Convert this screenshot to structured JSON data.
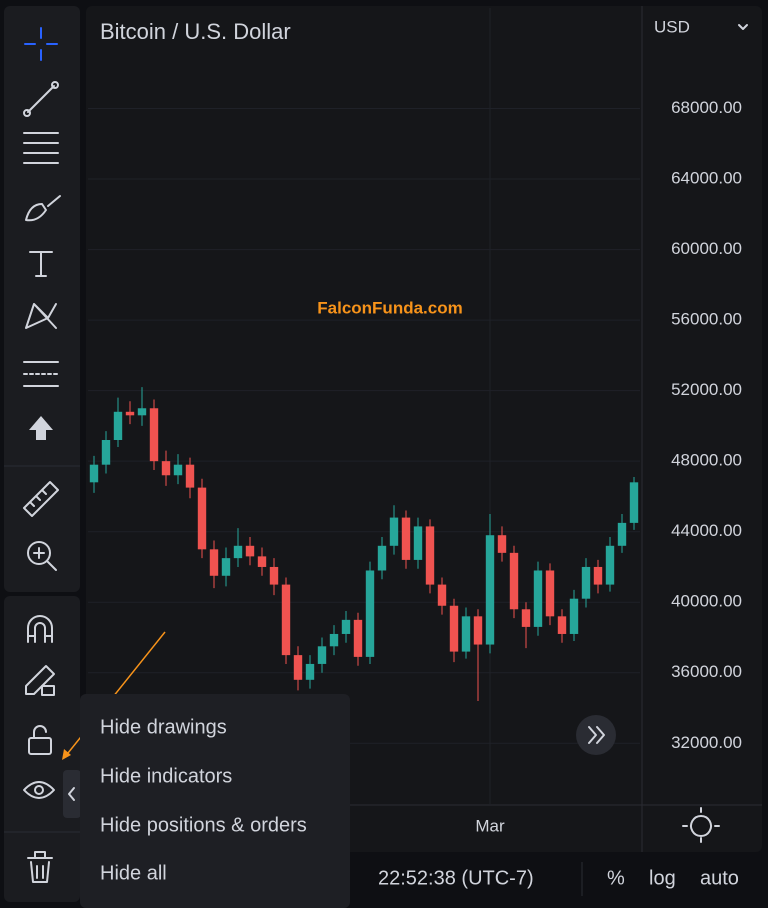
{
  "chart": {
    "title": "Bitcoin / U.S. Dollar",
    "currency": "USD",
    "watermark": "FalconFunda.com",
    "up_color": "#26a69a",
    "down_color": "#ef5350",
    "ylim": [
      28500,
      73700
    ],
    "yticks": [
      {
        "value": 68000,
        "label": "68000.00"
      },
      {
        "value": 64000,
        "label": "64000.00"
      },
      {
        "value": 60000,
        "label": "60000.00"
      },
      {
        "value": 56000,
        "label": "56000.00"
      },
      {
        "value": 52000,
        "label": "52000.00"
      },
      {
        "value": 48000,
        "label": "48000.00"
      },
      {
        "value": 44000,
        "label": "44000.00"
      },
      {
        "value": 40000,
        "label": "40000.00"
      },
      {
        "value": 36000,
        "label": "36000.00"
      },
      {
        "value": 32000,
        "label": "32000.00"
      }
    ],
    "categories": [
      null,
      null,
      null,
      null,
      null,
      null,
      null,
      null,
      null,
      null,
      null,
      null,
      null,
      null,
      null,
      null,
      null,
      null,
      null,
      null,
      null,
      null,
      null,
      null,
      null,
      null,
      null,
      null,
      null,
      null,
      null,
      null,
      null,
      "Mar",
      null,
      null,
      null,
      null,
      null,
      null,
      null,
      null,
      null,
      null,
      null,
      null
    ],
    "candles": [
      [
        46800,
        48300,
        46200,
        47800
      ],
      [
        47800,
        49700,
        47300,
        49200
      ],
      [
        49200,
        51600,
        48800,
        50800
      ],
      [
        50800,
        51400,
        50100,
        50600
      ],
      [
        50600,
        52200,
        50000,
        51000
      ],
      [
        51000,
        51500,
        47500,
        48000
      ],
      [
        48000,
        48600,
        46600,
        47200
      ],
      [
        47200,
        48400,
        46700,
        47800
      ],
      [
        47800,
        48200,
        45900,
        46500
      ],
      [
        46500,
        47000,
        42500,
        43000
      ],
      [
        43000,
        43500,
        40800,
        41500
      ],
      [
        41500,
        43100,
        40900,
        42500
      ],
      [
        42500,
        44200,
        42000,
        43200
      ],
      [
        43200,
        43700,
        42100,
        42600
      ],
      [
        42600,
        43100,
        41500,
        42000
      ],
      [
        42000,
        42500,
        40400,
        41000
      ],
      [
        41000,
        41400,
        36500,
        37000
      ],
      [
        37000,
        37500,
        35000,
        35600
      ],
      [
        35600,
        37000,
        35100,
        36500
      ],
      [
        36500,
        38000,
        36000,
        37500
      ],
      [
        37500,
        38700,
        37000,
        38200
      ],
      [
        38200,
        39500,
        37700,
        39000
      ],
      [
        39000,
        39400,
        36400,
        36900
      ],
      [
        36900,
        42300,
        36500,
        41800
      ],
      [
        41800,
        43700,
        41300,
        43200
      ],
      [
        43200,
        45500,
        42700,
        44800
      ],
      [
        44800,
        45200,
        41900,
        42400
      ],
      [
        42400,
        44800,
        41900,
        44300
      ],
      [
        44300,
        44700,
        40500,
        41000
      ],
      [
        41000,
        41400,
        39300,
        39800
      ],
      [
        39800,
        40200,
        36600,
        37200
      ],
      [
        37200,
        39700,
        36800,
        39200
      ],
      [
        39200,
        39600,
        34400,
        37600
      ],
      [
        37600,
        45000,
        37100,
        43800
      ],
      [
        43800,
        44300,
        42300,
        42800
      ],
      [
        42800,
        43200,
        39100,
        39600
      ],
      [
        39600,
        40000,
        37400,
        38600
      ],
      [
        38600,
        42300,
        38100,
        41800
      ],
      [
        41800,
        42200,
        38700,
        39200
      ],
      [
        39200,
        39600,
        37700,
        38200
      ],
      [
        38200,
        40700,
        37800,
        40200
      ],
      [
        40200,
        42500,
        39700,
        42000
      ],
      [
        42000,
        42400,
        40500,
        41000
      ],
      [
        41000,
        43700,
        40600,
        43200
      ],
      [
        43200,
        45000,
        42800,
        44500
      ],
      [
        44500,
        47100,
        44100,
        46800
      ]
    ]
  },
  "menu": {
    "items": [
      "Hide drawings",
      "Hide indicators",
      "Hide positions & orders",
      "Hide all"
    ]
  },
  "status_bar": {
    "time": "22:52:38 (UTC-7)",
    "percent": "%",
    "log": "log",
    "auto": "auto"
  }
}
